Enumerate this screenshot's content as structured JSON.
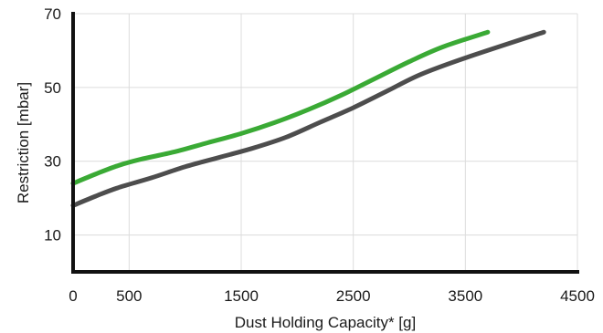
{
  "chart_data": {
    "type": "line",
    "title": "",
    "xlabel": "Dust Holding Capacity* [g]",
    "ylabel": "Restriction [mbar]",
    "xlim": [
      0,
      4500
    ],
    "ylim": [
      0,
      70
    ],
    "x_ticks": [
      0,
      500,
      1500,
      2500,
      3500,
      4500
    ],
    "y_ticks": [
      10,
      30,
      50,
      70
    ],
    "x_grid": [
      500,
      1500,
      2500,
      3500,
      4500
    ],
    "y_grid": [
      10,
      30,
      50,
      70
    ],
    "grid": true,
    "legend": "none",
    "series": [
      {
        "color": "#3aaa35",
        "points": [
          [
            0,
            24
          ],
          [
            200,
            26.5
          ],
          [
            400,
            28.8
          ],
          [
            600,
            30.5
          ],
          [
            900,
            32.5
          ],
          [
            1200,
            35
          ],
          [
            1500,
            37.5
          ],
          [
            1800,
            40.5
          ],
          [
            2100,
            44
          ],
          [
            2400,
            48
          ],
          [
            2700,
            52.5
          ],
          [
            3000,
            57
          ],
          [
            3300,
            61
          ],
          [
            3700,
            65
          ]
        ]
      },
      {
        "color": "#4d4d4d",
        "points": [
          [
            0,
            18
          ],
          [
            200,
            20.5
          ],
          [
            400,
            22.8
          ],
          [
            700,
            25.5
          ],
          [
            1000,
            28.5
          ],
          [
            1300,
            31
          ],
          [
            1600,
            33.5
          ],
          [
            1900,
            36.5
          ],
          [
            2200,
            40.5
          ],
          [
            2500,
            44.5
          ],
          [
            2800,
            49
          ],
          [
            3100,
            53.5
          ],
          [
            3500,
            58
          ],
          [
            4200,
            65
          ]
        ]
      }
    ]
  }
}
